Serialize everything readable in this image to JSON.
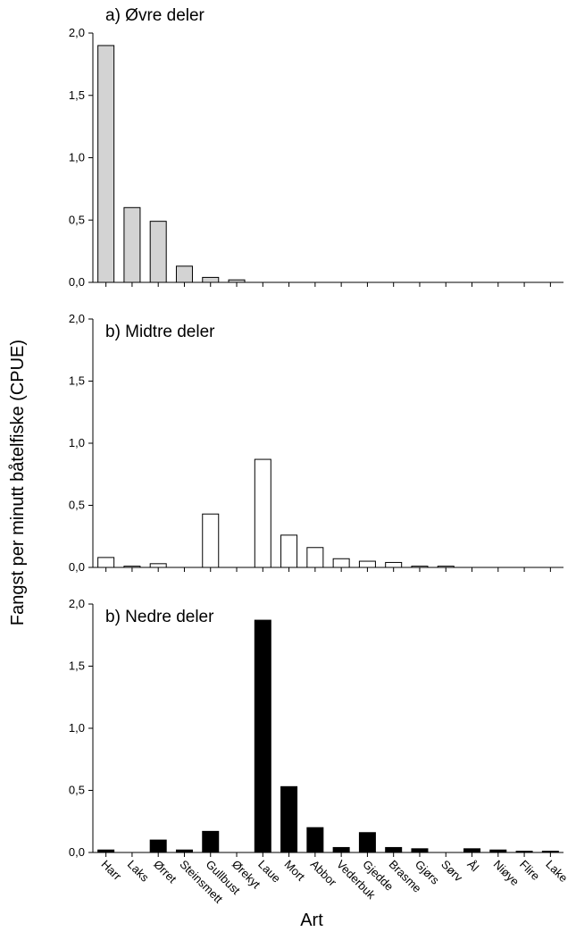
{
  "figure": {
    "ylabel": "Fangst per minutt båtelfiske (CPUE)",
    "xlabel": "Art"
  },
  "chart_data": [
    {
      "type": "bar",
      "title": "a) Øvre deler",
      "fill": "#d3d3d3",
      "ylim": [
        0,
        2.0
      ],
      "yticks": [
        "0,0",
        "0,5",
        "1,0",
        "1,5",
        "2,0"
      ],
      "categories": [
        "Harr",
        "Laks",
        "Ørret",
        "Steinsmett",
        "Gullbust",
        "Ørekyt",
        "Laue",
        "Mort",
        "Abbor",
        "Vederbuk",
        "Gjedde",
        "Brasme",
        "Gjørs",
        "Sørv",
        "Ål",
        "Niøye",
        "Flire",
        "Lake"
      ],
      "values": [
        1.9,
        0.6,
        0.49,
        0.13,
        0.04,
        0.02,
        0,
        0,
        0,
        0,
        0,
        0,
        0,
        0,
        0,
        0,
        0,
        0
      ]
    },
    {
      "type": "bar",
      "title": "b) Midtre deler",
      "fill": "#ffffff",
      "ylim": [
        0,
        2.0
      ],
      "yticks": [
        "0,0",
        "0,5",
        "1,0",
        "1,5",
        "2,0"
      ],
      "categories": [
        "Harr",
        "Laks",
        "Ørret",
        "Steinsmett",
        "Gullbust",
        "Ørekyt",
        "Laue",
        "Mort",
        "Abbor",
        "Vederbuk",
        "Gjedde",
        "Brasme",
        "Gjørs",
        "Sørv",
        "Ål",
        "Niøye",
        "Flire",
        "Lake"
      ],
      "values": [
        0.08,
        0.01,
        0.03,
        0,
        0.43,
        0,
        0.87,
        0.26,
        0.16,
        0.07,
        0.05,
        0.04,
        0.01,
        0.01,
        0,
        0,
        0,
        0
      ]
    },
    {
      "type": "bar",
      "title": "b) Nedre deler",
      "fill": "#000000",
      "ylim": [
        0,
        2.0
      ],
      "yticks": [
        "0,0",
        "0,5",
        "1,0",
        "1,5",
        "2,0"
      ],
      "categories": [
        "Harr",
        "Laks",
        "Ørret",
        "Steinsmett",
        "Gullbust",
        "Ørekyt",
        "Laue",
        "Mort",
        "Abbor",
        "Vederbuk",
        "Gjedde",
        "Brasme",
        "Gjørs",
        "Sørv",
        "Ål",
        "Niøye",
        "Flire",
        "Lake"
      ],
      "values": [
        0.02,
        0,
        0.1,
        0.02,
        0.17,
        0,
        1.87,
        0.53,
        0.2,
        0.04,
        0.16,
        0.04,
        0.03,
        0,
        0.03,
        0.02,
        0.01,
        0.01
      ]
    }
  ]
}
